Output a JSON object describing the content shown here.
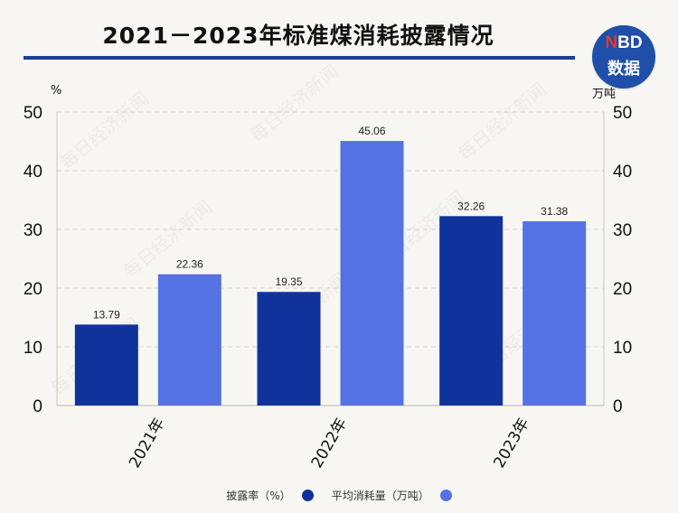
{
  "title": "2021－2023年标准煤消耗披露情况",
  "logo": {
    "line1_n": "N",
    "line1_rest": "BD",
    "line2": "数据"
  },
  "left_unit": "%",
  "right_unit": "万吨",
  "watermark": "每日经济新闻",
  "colors": {
    "series1": "#10339b",
    "series2": "#5572e4",
    "title_rule": "#1b3f91"
  },
  "chart_data": {
    "type": "bar",
    "categories": [
      "2021年",
      "2022年",
      "2023年"
    ],
    "series": [
      {
        "name": "披露率（%）",
        "values": [
          13.79,
          19.35,
          32.26
        ],
        "labels": [
          "13.79",
          "19.35",
          "32.26"
        ],
        "axis": "left"
      },
      {
        "name": "平均消耗量（万吨）",
        "values": [
          22.36,
          45.06,
          31.38
        ],
        "labels": [
          "22.36",
          "45.06",
          "31.38"
        ],
        "axis": "right"
      }
    ],
    "ylim": [
      0,
      50
    ],
    "y_ticks": [
      0,
      10,
      20,
      30,
      40,
      50
    ],
    "y_tick_labels": [
      "0",
      "10",
      "20",
      "30",
      "40",
      "50"
    ],
    "y2lim": [
      0,
      50
    ],
    "y2_ticks": [
      0,
      10,
      20,
      30,
      40,
      50
    ],
    "y2_tick_labels": [
      "0",
      "10",
      "20",
      "30",
      "40",
      "50"
    ],
    "grid": true,
    "legend": "bottom"
  }
}
